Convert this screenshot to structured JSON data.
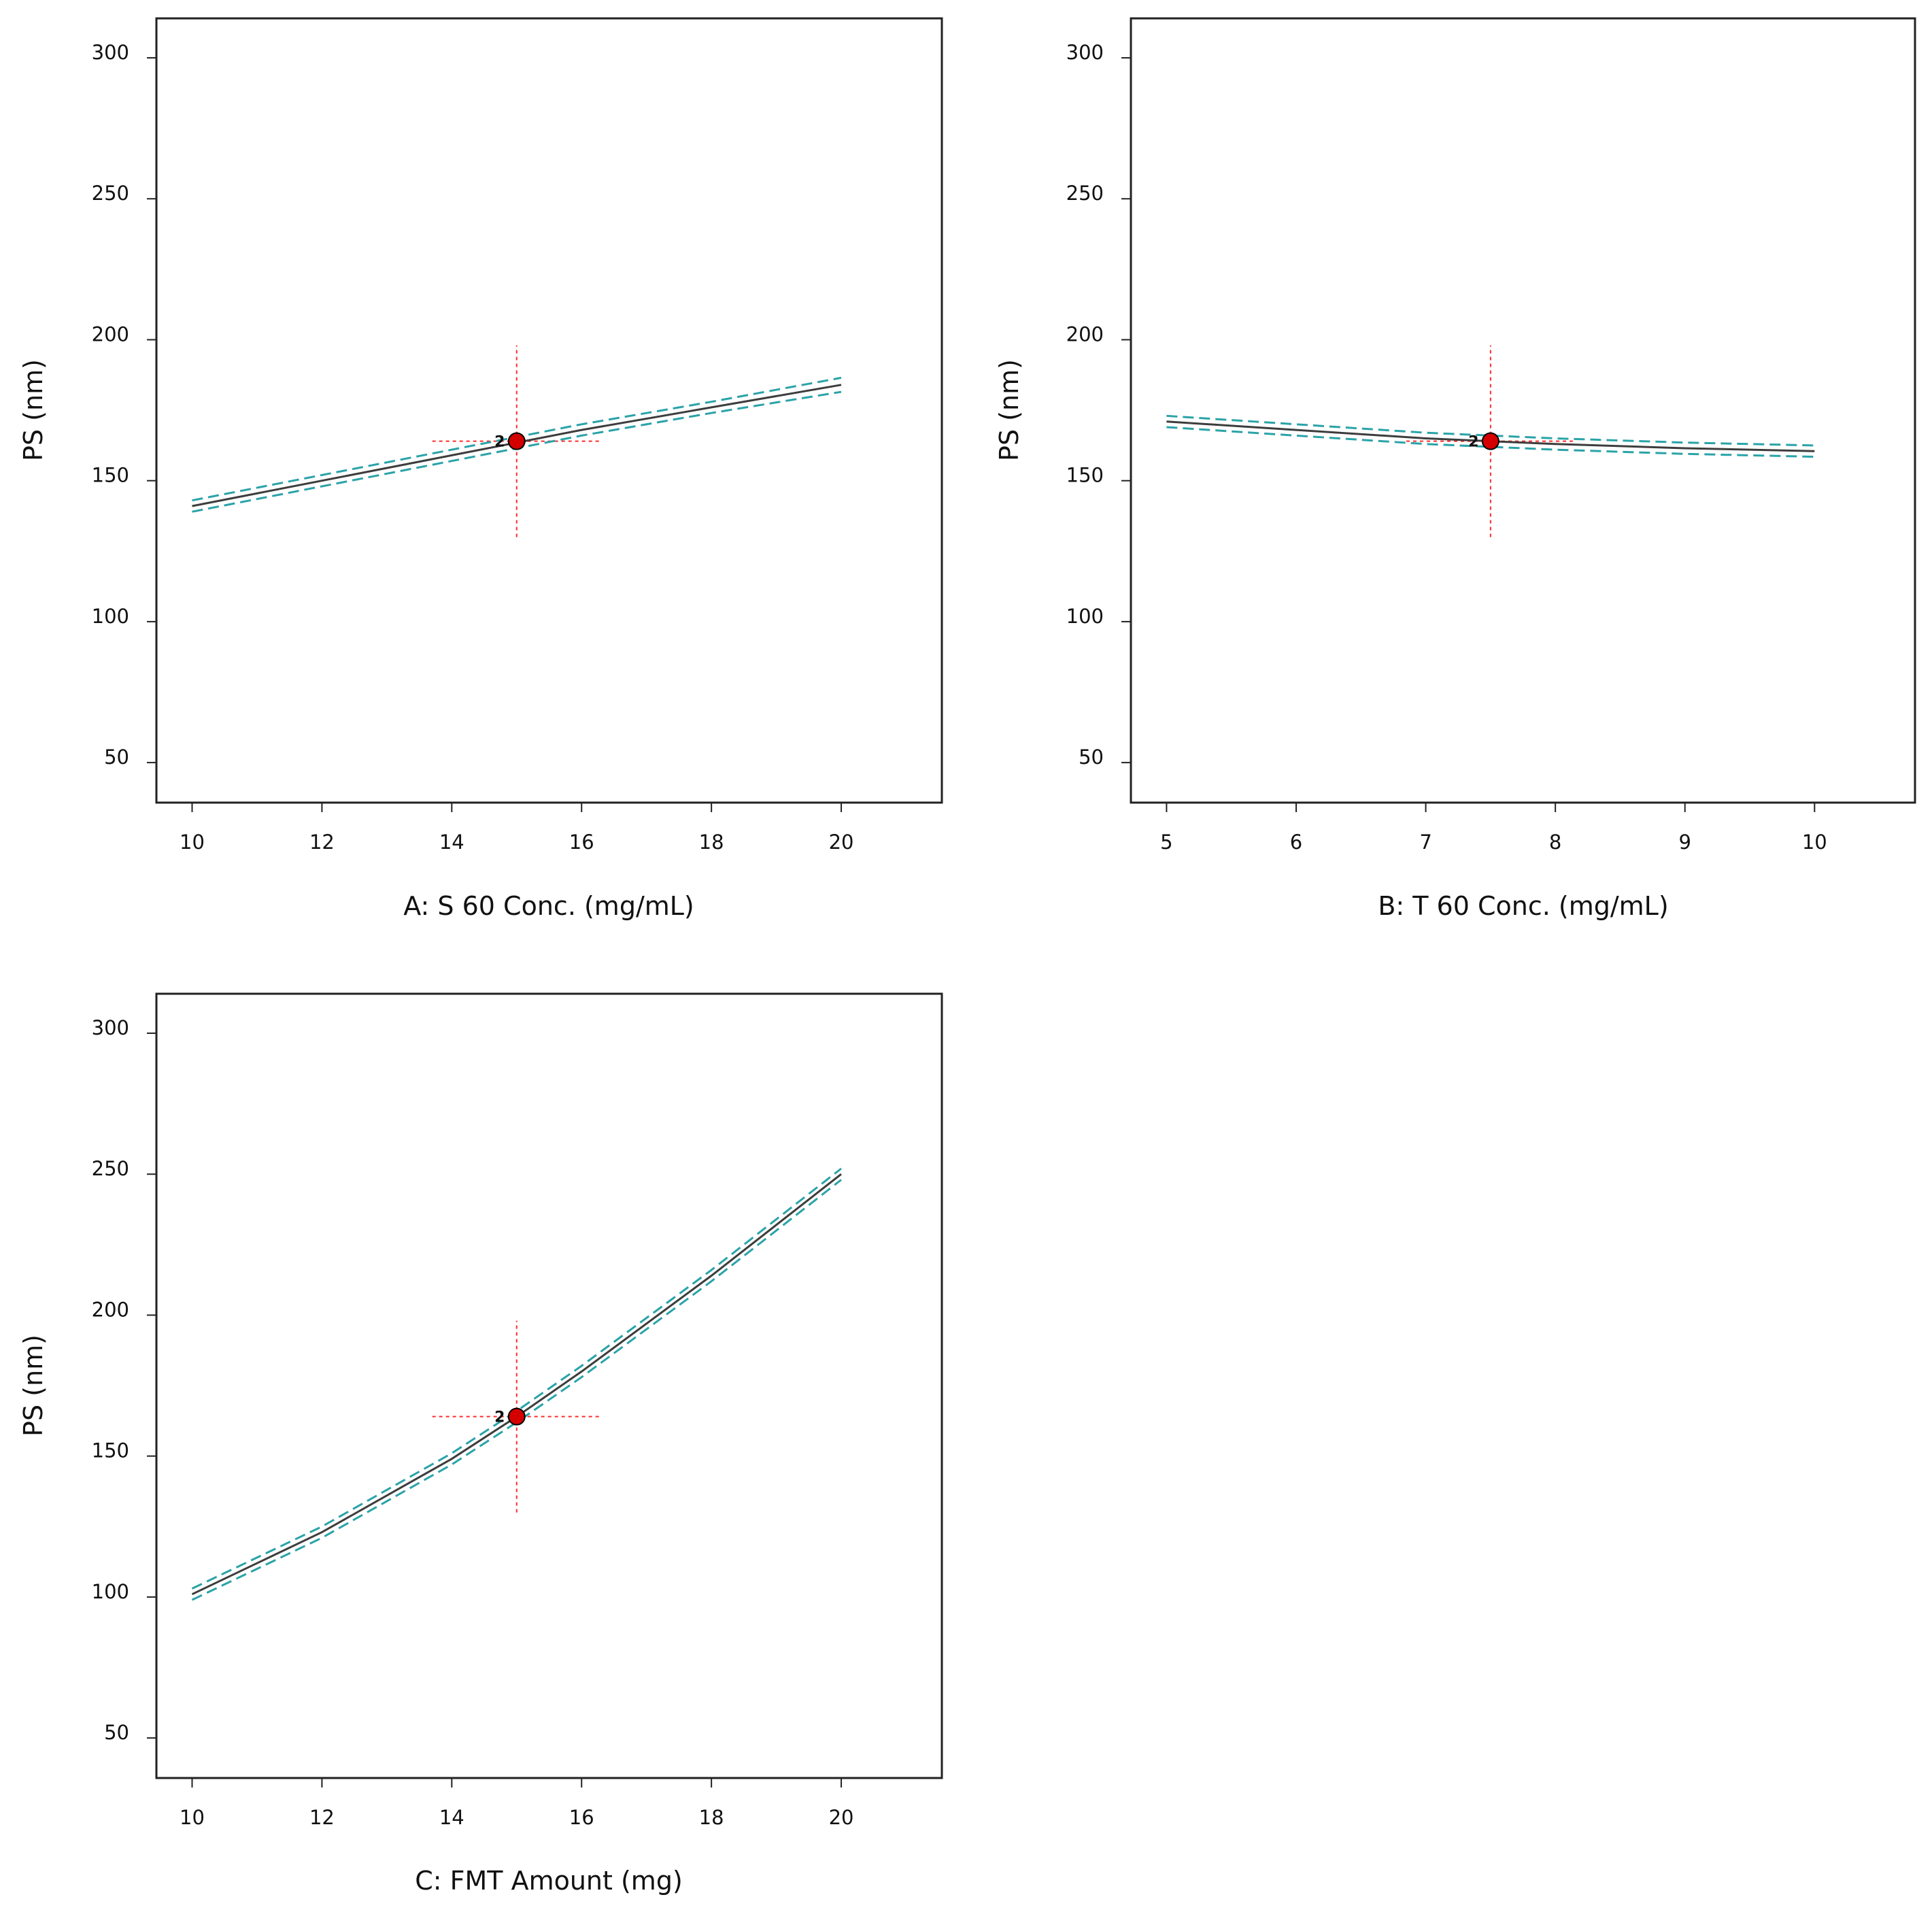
{
  "chart_data": [
    {
      "type": "line",
      "title": "",
      "xlabel": "A: S 60 Conc. (mg/mL)",
      "ylabel": "PS (nm)",
      "xlim": [
        9.45,
        21.55
      ],
      "ylim": [
        35.8,
        314.0
      ],
      "xticks": [
        10,
        12,
        14,
        16,
        18,
        20
      ],
      "yticks": [
        50,
        100,
        150,
        200,
        250,
        300
      ],
      "series": [
        {
          "name": "prediction",
          "x": [
            10,
            12,
            14,
            16,
            18,
            20
          ],
          "y": [
            141,
            150,
            159,
            168,
            176,
            184
          ]
        },
        {
          "name": "upper CI",
          "x": [
            10,
            12,
            14,
            16,
            18,
            20
          ],
          "y": [
            143,
            152,
            161,
            170,
            178,
            186.5
          ]
        },
        {
          "name": "lower CI",
          "x": [
            10,
            12,
            14,
            16,
            18,
            20
          ],
          "y": [
            139,
            148,
            157,
            166,
            174,
            181.5
          ]
        }
      ],
      "design_point": {
        "x": 15,
        "y": 164,
        "label": "2"
      },
      "crosshair": {
        "x_range": [
          13.7,
          16.3
        ],
        "y_range": [
          130,
          198
        ]
      }
    },
    {
      "type": "line",
      "title": "",
      "xlabel": "B: T 60 Conc. (mg/mL)",
      "ylabel": "PS (nm)",
      "xlim": [
        4.725,
        10.775
      ],
      "ylim": [
        35.8,
        314.0
      ],
      "xticks": [
        5,
        6,
        7,
        8,
        9,
        10
      ],
      "yticks": [
        50,
        100,
        150,
        200,
        250,
        300
      ],
      "series": [
        {
          "name": "prediction",
          "x": [
            5,
            6,
            7,
            8,
            9,
            10
          ],
          "y": [
            171,
            168,
            165,
            163,
            161.5,
            160.5
          ]
        },
        {
          "name": "upper CI",
          "x": [
            5,
            6,
            7,
            8,
            9,
            10
          ],
          "y": [
            173,
            170,
            167,
            165,
            163.5,
            162.5
          ]
        },
        {
          "name": "lower CI",
          "x": [
            5,
            6,
            7,
            8,
            9,
            10
          ],
          "y": [
            169,
            166,
            163,
            161,
            159.5,
            158.5
          ]
        }
      ],
      "design_point": {
        "x": 7.5,
        "y": 164,
        "label": "2"
      },
      "crosshair": {
        "x_range": [
          6.85,
          8.15
        ],
        "y_range": [
          130,
          198
        ]
      }
    },
    {
      "type": "line",
      "title": "",
      "xlabel": "C: FMT Amount (mg)",
      "ylabel": "PS (nm)",
      "xlim": [
        9.45,
        21.55
      ],
      "ylim": [
        35.8,
        314.0
      ],
      "xticks": [
        10,
        12,
        14,
        16,
        18,
        20
      ],
      "yticks": [
        50,
        100,
        150,
        200,
        250,
        300
      ],
      "series": [
        {
          "name": "prediction",
          "x": [
            10,
            12,
            14,
            15,
            16,
            18,
            20
          ],
          "y": [
            101,
            123,
            149,
            164,
            180,
            214,
            250
          ]
        },
        {
          "name": "upper CI",
          "x": [
            10,
            12,
            14,
            15,
            16,
            18,
            20
          ],
          "y": [
            103,
            125,
            151,
            166,
            182,
            216,
            252
          ]
        },
        {
          "name": "lower CI",
          "x": [
            10,
            12,
            14,
            15,
            16,
            18,
            20
          ],
          "y": [
            99,
            121,
            147,
            162,
            178,
            212,
            248
          ]
        }
      ],
      "design_point": {
        "x": 15,
        "y": 164,
        "label": "2"
      },
      "crosshair": {
        "x_range": [
          13.7,
          16.3
        ],
        "y_range": [
          130,
          198
        ]
      }
    }
  ],
  "colors": {
    "prediction_line": "#3d3d3d",
    "ci_line": "#2aa3a8",
    "crosshair": "#ff2a2a",
    "design_point_fill": "#d40000",
    "axis": "#222222"
  }
}
